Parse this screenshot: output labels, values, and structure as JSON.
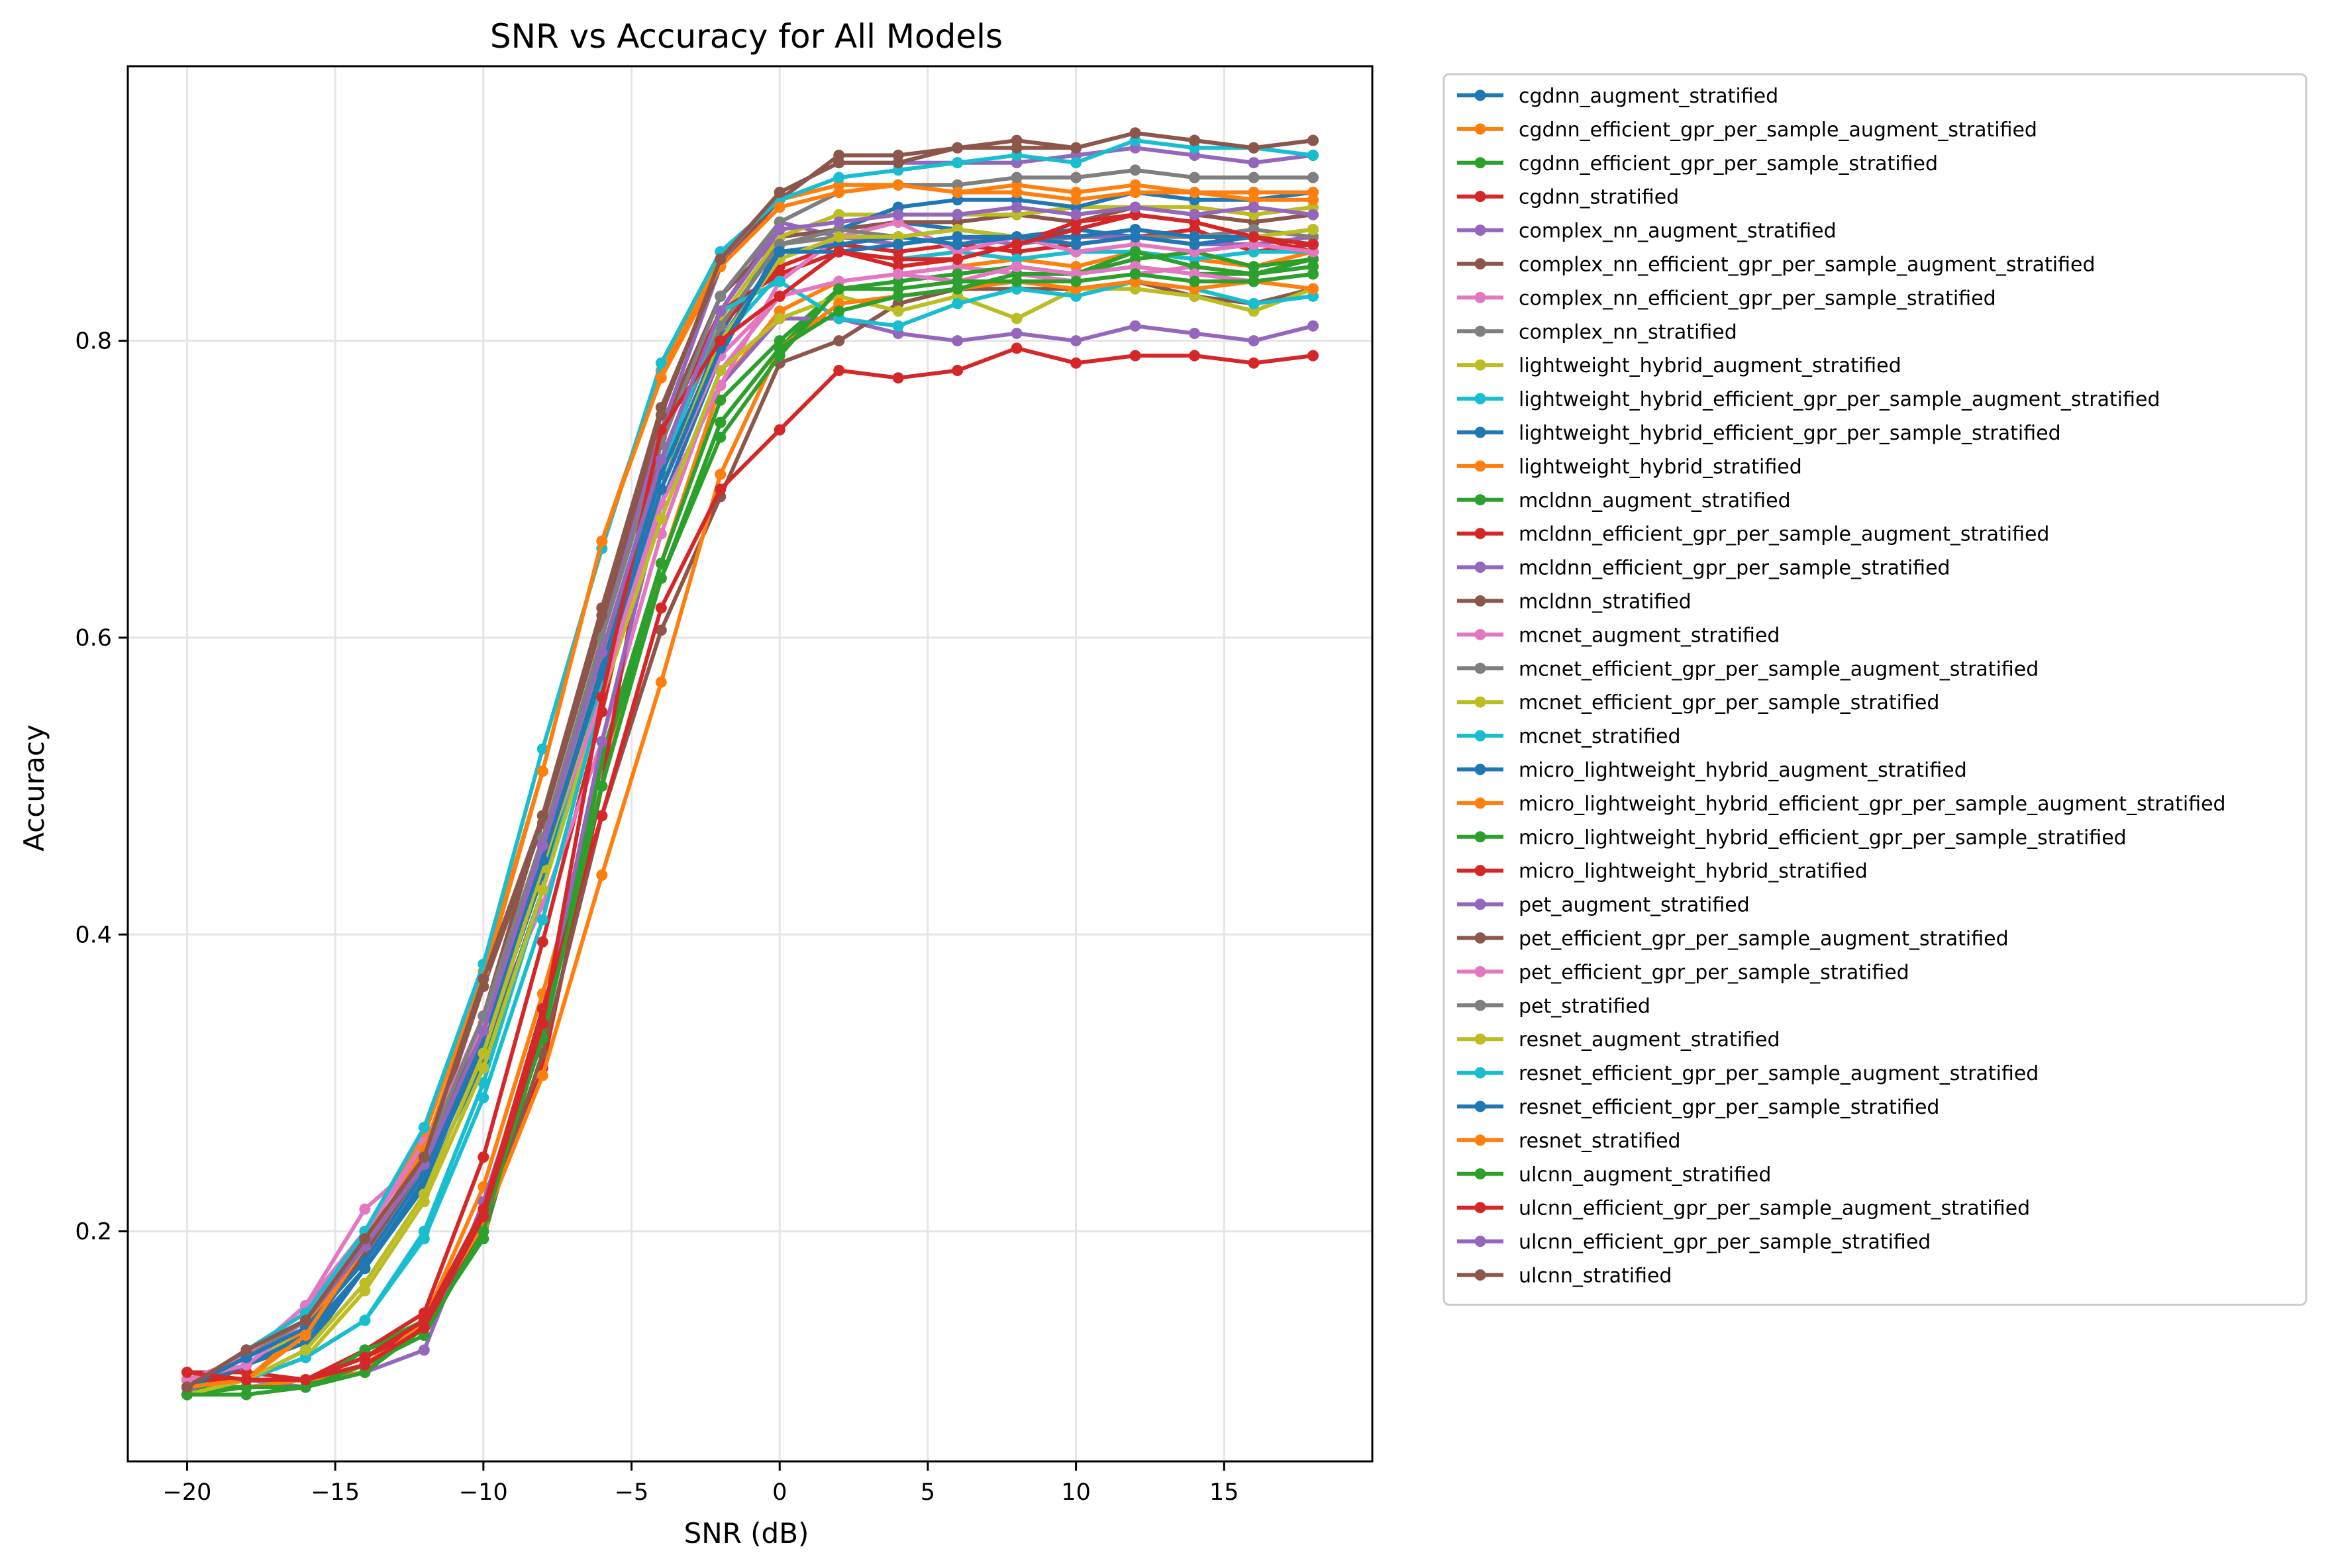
{
  "chart_data": {
    "type": "line",
    "title": "SNR vs Accuracy for All Models",
    "xlabel": "SNR (dB)",
    "ylabel": "Accuracy",
    "xlim": [
      -22,
      20
    ],
    "ylim": [
      0.045,
      0.985
    ],
    "xticks": [
      -20,
      -15,
      -10,
      -5,
      0,
      5,
      10,
      15
    ],
    "xtick_labels": [
      "−20",
      "−15",
      "−10",
      "−5",
      "0",
      "5",
      "10",
      "15"
    ],
    "yticks": [
      0.2,
      0.4,
      0.6,
      0.8
    ],
    "ytick_labels": [
      "0.2",
      "0.4",
      "0.6",
      "0.8"
    ],
    "grid": true,
    "legend_position": "outside-right",
    "x": [
      -20,
      -18,
      -16,
      -14,
      -12,
      -10,
      -8,
      -6,
      -4,
      -2,
      0,
      2,
      4,
      6,
      8,
      10,
      12,
      14,
      16,
      18
    ],
    "series": [
      {
        "name": "cgdnn_augment_stratified",
        "color": "#1f77b4",
        "values": [
          0.09,
          0.11,
          0.125,
          0.175,
          0.235,
          0.325,
          0.44,
          0.565,
          0.7,
          0.805,
          0.87,
          0.875,
          0.88,
          0.875,
          0.87,
          0.875,
          0.87,
          0.865,
          0.87,
          0.865
        ]
      },
      {
        "name": "cgdnn_efficient_gpr_per_sample_augment_stratified",
        "color": "#ff7f0e",
        "values": [
          0.095,
          0.095,
          0.1,
          0.11,
          0.14,
          0.23,
          0.36,
          0.5,
          0.65,
          0.77,
          0.82,
          0.84,
          0.845,
          0.85,
          0.855,
          0.85,
          0.86,
          0.855,
          0.85,
          0.86
        ]
      },
      {
        "name": "cgdnn_efficient_gpr_per_sample_stratified",
        "color": "#2ca02c",
        "values": [
          0.095,
          0.095,
          0.095,
          0.12,
          0.14,
          0.21,
          0.34,
          0.52,
          0.65,
          0.76,
          0.8,
          0.835,
          0.84,
          0.845,
          0.85,
          0.845,
          0.85,
          0.845,
          0.845,
          0.855
        ]
      },
      {
        "name": "cgdnn_stratified",
        "color": "#d62728",
        "values": [
          0.1,
          0.1,
          0.1,
          0.12,
          0.145,
          0.25,
          0.395,
          0.55,
          0.72,
          0.81,
          0.85,
          0.865,
          0.86,
          0.865,
          0.86,
          0.865,
          0.87,
          0.875,
          0.86,
          0.865
        ]
      },
      {
        "name": "complex_nn_augment_stratified",
        "color": "#9467bd",
        "values": [
          0.09,
          0.12,
          0.14,
          0.19,
          0.245,
          0.335,
          0.46,
          0.59,
          0.72,
          0.82,
          0.88,
          0.87,
          0.865,
          0.87,
          0.865,
          0.87,
          0.87,
          0.865,
          0.865,
          0.87
        ]
      },
      {
        "name": "complex_nn_efficient_gpr_per_sample_augment_stratified",
        "color": "#8c564b",
        "values": [
          0.095,
          0.11,
          0.13,
          0.185,
          0.245,
          0.365,
          0.475,
          0.61,
          0.74,
          0.83,
          0.87,
          0.875,
          0.88,
          0.88,
          0.885,
          0.88,
          0.89,
          0.885,
          0.88,
          0.885
        ]
      },
      {
        "name": "complex_nn_efficient_gpr_per_sample_stratified",
        "color": "#e377c2",
        "values": [
          0.095,
          0.115,
          0.15,
          0.215,
          0.25,
          0.33,
          0.42,
          0.53,
          0.67,
          0.78,
          0.83,
          0.84,
          0.845,
          0.85,
          0.845,
          0.84,
          0.845,
          0.85,
          0.845,
          0.85
        ]
      },
      {
        "name": "complex_nn_stratified",
        "color": "#7f7f7f",
        "values": [
          0.095,
          0.12,
          0.14,
          0.19,
          0.245,
          0.34,
          0.46,
          0.59,
          0.72,
          0.81,
          0.865,
          0.87,
          0.87,
          0.875,
          0.87,
          0.87,
          0.875,
          0.87,
          0.87,
          0.875
        ]
      },
      {
        "name": "lightweight_hybrid_augment_stratified",
        "color": "#bcbd22",
        "values": [
          0.095,
          0.11,
          0.135,
          0.19,
          0.25,
          0.34,
          0.455,
          0.585,
          0.72,
          0.815,
          0.87,
          0.885,
          0.885,
          0.885,
          0.885,
          0.89,
          0.89,
          0.89,
          0.885,
          0.89
        ]
      },
      {
        "name": "lightweight_hybrid_efficient_gpr_per_sample_augment_stratified",
        "color": "#17becf",
        "values": [
          0.095,
          0.1,
          0.115,
          0.14,
          0.2,
          0.3,
          0.43,
          0.57,
          0.7,
          0.8,
          0.845,
          0.86,
          0.855,
          0.86,
          0.855,
          0.86,
          0.86,
          0.855,
          0.86,
          0.86
        ]
      },
      {
        "name": "lightweight_hybrid_efficient_gpr_per_sample_stratified",
        "color": "#1f77b4",
        "values": [
          0.1,
          0.1,
          0.12,
          0.175,
          0.23,
          0.315,
          0.43,
          0.56,
          0.69,
          0.79,
          0.865,
          0.875,
          0.89,
          0.895,
          0.895,
          0.89,
          0.9,
          0.895,
          0.895,
          0.9
        ]
      },
      {
        "name": "lightweight_hybrid_stratified",
        "color": "#ff7f0e",
        "values": [
          0.095,
          0.1,
          0.135,
          0.195,
          0.265,
          0.375,
          0.51,
          0.665,
          0.78,
          0.855,
          0.895,
          0.905,
          0.905,
          0.9,
          0.905,
          0.9,
          0.905,
          0.9,
          0.9,
          0.9
        ]
      },
      {
        "name": "mcldnn_augment_stratified",
        "color": "#2ca02c",
        "values": [
          0.095,
          0.095,
          0.095,
          0.12,
          0.135,
          0.195,
          0.335,
          0.515,
          0.64,
          0.745,
          0.795,
          0.835,
          0.84,
          0.845,
          0.85,
          0.845,
          0.855,
          0.86,
          0.85,
          0.855
        ]
      },
      {
        "name": "mcldnn_efficient_gpr_per_sample_augment_stratified",
        "color": "#d62728",
        "values": [
          0.105,
          0.105,
          0.1,
          0.115,
          0.135,
          0.205,
          0.31,
          0.5,
          0.735,
          0.82,
          0.845,
          0.86,
          0.85,
          0.855,
          0.865,
          0.88,
          0.885,
          0.88,
          0.87,
          0.86
        ]
      },
      {
        "name": "mcldnn_efficient_gpr_per_sample_stratified",
        "color": "#9467bd",
        "values": [
          0.09,
          0.1,
          0.095,
          0.105,
          0.12,
          0.22,
          0.34,
          0.53,
          0.69,
          0.77,
          0.815,
          0.815,
          0.805,
          0.8,
          0.805,
          0.8,
          0.81,
          0.805,
          0.8,
          0.81
        ]
      },
      {
        "name": "mcldnn_stratified",
        "color": "#8c564b",
        "values": [
          0.095,
          0.1,
          0.1,
          0.115,
          0.14,
          0.2,
          0.32,
          0.48,
          0.605,
          0.695,
          0.785,
          0.8,
          0.825,
          0.835,
          0.835,
          0.835,
          0.84,
          0.83,
          0.825,
          0.835
        ]
      },
      {
        "name": "mcnet_augment_stratified",
        "color": "#e377c2",
        "values": [
          0.1,
          0.115,
          0.15,
          0.2,
          0.255,
          0.345,
          0.45,
          0.56,
          0.69,
          0.77,
          0.84,
          0.87,
          0.88,
          0.86,
          0.87,
          0.86,
          0.865,
          0.86,
          0.865,
          0.86
        ]
      },
      {
        "name": "mcnet_efficient_gpr_per_sample_augment_stratified",
        "color": "#7f7f7f",
        "values": [
          0.095,
          0.115,
          0.14,
          0.19,
          0.245,
          0.34,
          0.46,
          0.59,
          0.715,
          0.81,
          0.865,
          0.875,
          0.87,
          0.875,
          0.87,
          0.865,
          0.87,
          0.87,
          0.875,
          0.87
        ]
      },
      {
        "name": "mcnet_efficient_gpr_per_sample_stratified",
        "color": "#bcbd22",
        "values": [
          0.09,
          0.1,
          0.115,
          0.16,
          0.22,
          0.31,
          0.43,
          0.56,
          0.68,
          0.78,
          0.815,
          0.83,
          0.82,
          0.83,
          0.815,
          0.835,
          0.835,
          0.83,
          0.82,
          0.835
        ]
      },
      {
        "name": "mcnet_stratified",
        "color": "#17becf",
        "values": [
          0.095,
          0.1,
          0.115,
          0.14,
          0.195,
          0.29,
          0.41,
          0.56,
          0.71,
          0.82,
          0.84,
          0.815,
          0.81,
          0.825,
          0.835,
          0.83,
          0.84,
          0.835,
          0.825,
          0.83
        ]
      },
      {
        "name": "micro_lightweight_hybrid_augment_stratified",
        "color": "#1f77b4",
        "values": [
          0.095,
          0.11,
          0.13,
          0.175,
          0.235,
          0.33,
          0.45,
          0.58,
          0.71,
          0.8,
          0.86,
          0.865,
          0.87,
          0.865,
          0.87,
          0.865,
          0.87,
          0.865,
          0.87,
          0.865
        ]
      },
      {
        "name": "micro_lightweight_hybrid_efficient_gpr_per_sample_augment_stratified",
        "color": "#ff7f0e",
        "values": [
          0.09,
          0.095,
          0.1,
          0.105,
          0.14,
          0.205,
          0.305,
          0.44,
          0.57,
          0.71,
          0.795,
          0.825,
          0.83,
          0.835,
          0.84,
          0.835,
          0.84,
          0.835,
          0.84,
          0.835
        ]
      },
      {
        "name": "micro_lightweight_hybrid_efficient_gpr_per_sample_stratified",
        "color": "#2ca02c",
        "values": [
          0.09,
          0.095,
          0.095,
          0.11,
          0.13,
          0.2,
          0.34,
          0.5,
          0.64,
          0.745,
          0.795,
          0.82,
          0.83,
          0.835,
          0.845,
          0.845,
          0.86,
          0.85,
          0.845,
          0.85
        ]
      },
      {
        "name": "micro_lightweight_hybrid_stratified",
        "color": "#d62728",
        "values": [
          0.1,
          0.1,
          0.1,
          0.115,
          0.14,
          0.215,
          0.35,
          0.48,
          0.62,
          0.7,
          0.74,
          0.78,
          0.775,
          0.78,
          0.795,
          0.785,
          0.79,
          0.79,
          0.785,
          0.79
        ]
      },
      {
        "name": "pet_augment_stratified",
        "color": "#9467bd",
        "values": [
          0.095,
          0.12,
          0.14,
          0.195,
          0.25,
          0.335,
          0.455,
          0.6,
          0.74,
          0.85,
          0.9,
          0.92,
          0.92,
          0.92,
          0.92,
          0.925,
          0.93,
          0.925,
          0.92,
          0.925
        ]
      },
      {
        "name": "pet_efficient_gpr_per_sample_augment_stratified",
        "color": "#8c564b",
        "values": [
          0.095,
          0.12,
          0.14,
          0.195,
          0.245,
          0.345,
          0.48,
          0.62,
          0.755,
          0.85,
          0.895,
          0.925,
          0.925,
          0.93,
          0.935,
          0.93,
          0.94,
          0.935,
          0.93,
          0.935
        ]
      },
      {
        "name": "pet_efficient_gpr_per_sample_stratified",
        "color": "#e377c2",
        "values": [
          0.1,
          0.11,
          0.14,
          0.2,
          0.26,
          0.34,
          0.45,
          0.56,
          0.7,
          0.79,
          0.83,
          0.84,
          0.845,
          0.84,
          0.85,
          0.845,
          0.85,
          0.845,
          0.84,
          0.845
        ]
      },
      {
        "name": "pet_stratified",
        "color": "#7f7f7f",
        "values": [
          0.095,
          0.115,
          0.14,
          0.195,
          0.25,
          0.345,
          0.465,
          0.6,
          0.73,
          0.83,
          0.88,
          0.9,
          0.905,
          0.905,
          0.91,
          0.91,
          0.915,
          0.91,
          0.91,
          0.91
        ]
      },
      {
        "name": "resnet_augment_stratified",
        "color": "#bcbd22",
        "values": [
          0.09,
          0.1,
          0.12,
          0.165,
          0.225,
          0.32,
          0.445,
          0.575,
          0.7,
          0.8,
          0.855,
          0.87,
          0.87,
          0.875,
          0.87,
          0.87,
          0.875,
          0.87,
          0.87,
          0.875
        ]
      },
      {
        "name": "resnet_efficient_gpr_per_sample_augment_stratified",
        "color": "#17becf",
        "values": [
          0.095,
          0.12,
          0.145,
          0.2,
          0.27,
          0.38,
          0.525,
          0.66,
          0.785,
          0.86,
          0.895,
          0.91,
          0.915,
          0.92,
          0.925,
          0.92,
          0.935,
          0.93,
          0.93,
          0.925
        ]
      },
      {
        "name": "resnet_efficient_gpr_per_sample_stratified",
        "color": "#1f77b4",
        "values": [
          0.095,
          0.115,
          0.135,
          0.18,
          0.24,
          0.335,
          0.45,
          0.575,
          0.7,
          0.795,
          0.86,
          0.86,
          0.865,
          0.87,
          0.87,
          0.87,
          0.875,
          0.87,
          0.87,
          0.865
        ]
      },
      {
        "name": "resnet_stratified",
        "color": "#ff7f0e",
        "values": [
          0.095,
          0.1,
          0.13,
          0.19,
          0.255,
          0.37,
          0.51,
          0.665,
          0.775,
          0.85,
          0.89,
          0.9,
          0.905,
          0.9,
          0.9,
          0.895,
          0.9,
          0.9,
          0.895,
          0.895
        ]
      },
      {
        "name": "ulcnn_augment_stratified",
        "color": "#2ca02c",
        "values": [
          0.09,
          0.09,
          0.095,
          0.105,
          0.135,
          0.21,
          0.33,
          0.5,
          0.64,
          0.735,
          0.79,
          0.835,
          0.835,
          0.84,
          0.84,
          0.84,
          0.845,
          0.84,
          0.84,
          0.845
        ]
      },
      {
        "name": "ulcnn_efficient_gpr_per_sample_augment_stratified",
        "color": "#d62728",
        "values": [
          0.105,
          0.1,
          0.1,
          0.11,
          0.135,
          0.21,
          0.34,
          0.56,
          0.74,
          0.8,
          0.83,
          0.86,
          0.855,
          0.855,
          0.865,
          0.875,
          0.885,
          0.88,
          0.87,
          0.865
        ]
      },
      {
        "name": "ulcnn_efficient_gpr_per_sample_stratified",
        "color": "#9467bd",
        "values": [
          0.095,
          0.12,
          0.14,
          0.19,
          0.245,
          0.335,
          0.46,
          0.59,
          0.72,
          0.82,
          0.875,
          0.88,
          0.885,
          0.885,
          0.89,
          0.885,
          0.89,
          0.885,
          0.89,
          0.885
        ]
      },
      {
        "name": "ulcnn_stratified",
        "color": "#8c564b",
        "values": [
          0.095,
          0.12,
          0.14,
          0.195,
          0.25,
          0.37,
          0.48,
          0.615,
          0.75,
          0.855,
          0.9,
          0.92,
          0.92,
          0.93,
          0.93,
          0.93,
          0.94,
          0.935,
          0.93,
          0.935
        ]
      }
    ]
  }
}
